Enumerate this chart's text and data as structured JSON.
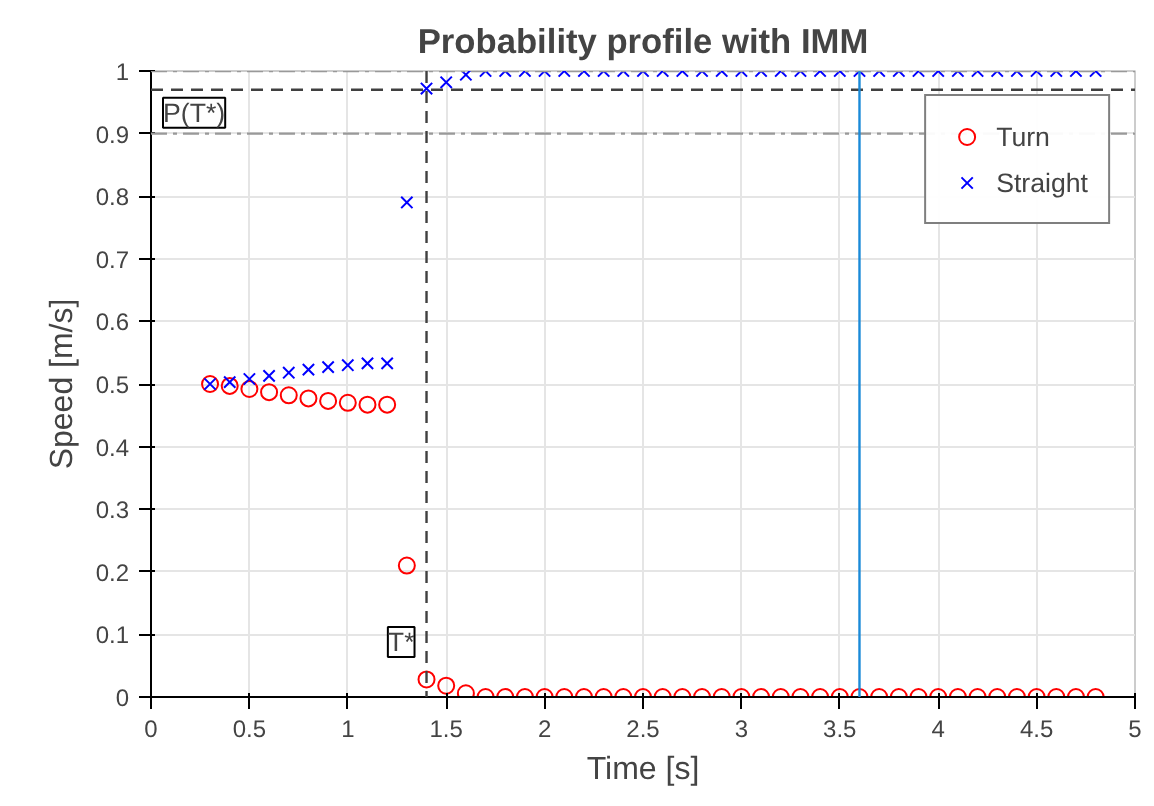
{
  "chart_data": {
    "type": "scatter",
    "title": "Probability profile with IMM",
    "xlabel": "Time [s]",
    "ylabel": "Speed [m/s]",
    "x": [
      0.3,
      0.4,
      0.5,
      0.6,
      0.7,
      0.8,
      0.9,
      1.0,
      1.1,
      1.2,
      1.3,
      1.4,
      1.5,
      1.6,
      1.7,
      1.8,
      1.9,
      2.0,
      2.1,
      2.2,
      2.3,
      2.4,
      2.5,
      2.6,
      2.7,
      2.8,
      2.9,
      3.0,
      3.1,
      3.2,
      3.3,
      3.4,
      3.5,
      3.6,
      3.7,
      3.8,
      3.9,
      4.0,
      4.1,
      4.2,
      4.3,
      4.4,
      4.5,
      4.6,
      4.7,
      4.8
    ],
    "series": [
      {
        "name": "Turn",
        "color": "#ff0000",
        "marker": "circle",
        "values": [
          0.5,
          0.497,
          0.492,
          0.487,
          0.482,
          0.477,
          0.473,
          0.47,
          0.467,
          0.467,
          0.21,
          0.028,
          0.018,
          0.006,
          0,
          0,
          0,
          0,
          0,
          0,
          0,
          0,
          0,
          0,
          0,
          0,
          0,
          0,
          0,
          0,
          0,
          0,
          0,
          0,
          0,
          0,
          0,
          0,
          0,
          0,
          0,
          0,
          0,
          0,
          0,
          0
        ]
      },
      {
        "name": "Straight",
        "color": "#0000ff",
        "marker": "cross",
        "values": [
          0.5,
          0.503,
          0.508,
          0.513,
          0.518,
          0.523,
          0.527,
          0.53,
          0.533,
          0.533,
          0.79,
          0.972,
          0.982,
          0.994,
          1,
          1,
          1,
          1,
          1,
          1,
          1,
          1,
          1,
          1,
          1,
          1,
          1,
          1,
          1,
          1,
          1,
          1,
          1,
          1,
          1,
          1,
          1,
          1,
          1,
          1,
          1,
          1,
          1,
          1,
          1,
          1
        ]
      }
    ],
    "xlim": [
      0,
      5
    ],
    "ylim": [
      0,
      1
    ],
    "xticks": [
      0,
      0.5,
      1,
      1.5,
      2,
      2.5,
      3,
      3.5,
      4,
      4.5,
      5
    ],
    "yticks": [
      0,
      0.1,
      0.2,
      0.3,
      0.4,
      0.5,
      0.6,
      0.7,
      0.8,
      0.9,
      1
    ],
    "ref_lines": [
      {
        "axis": "y",
        "value": 1,
        "color": "#999999",
        "line_style": "dashdot"
      },
      {
        "axis": "y",
        "value": 0.9,
        "color": "#999999",
        "line_style": "dashdot"
      },
      {
        "axis": "y",
        "value": 0.97,
        "label": "P(T*)",
        "color": "#404040",
        "line_style": "dashed"
      },
      {
        "axis": "x",
        "value": 1.4,
        "label": "T*",
        "color": "#404040",
        "line_style": "dashed"
      },
      {
        "axis": "x",
        "value": 3.6,
        "color": "#1a8ad8",
        "line_style": "solid"
      }
    ],
    "grid": true,
    "legend": "top right"
  }
}
